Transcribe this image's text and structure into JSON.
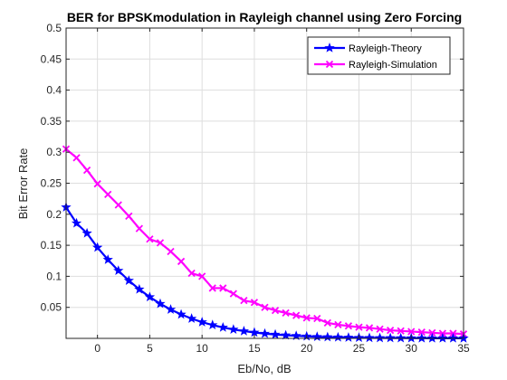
{
  "chart_data": {
    "type": "line",
    "title": "BER for BPSKmodulation in Rayleigh channel using Zero Forcing",
    "xlabel": "Eb/No, dB",
    "ylabel": "Bit Error Rate",
    "xlim": [
      -3,
      35
    ],
    "ylim": [
      0,
      0.5
    ],
    "xticks": [
      "0",
      "5",
      "10",
      "15",
      "20",
      "25",
      "30",
      "35"
    ],
    "yticks": [
      "0.05",
      "0.1",
      "0.15",
      "0.2",
      "0.25",
      "0.3",
      "0.35",
      "0.4",
      "0.45",
      "0.5"
    ],
    "grid": true,
    "legend_position": "top-right",
    "x": [
      -3,
      -2,
      -1,
      0,
      1,
      2,
      3,
      4,
      5,
      6,
      7,
      8,
      9,
      10,
      11,
      12,
      13,
      14,
      15,
      16,
      17,
      18,
      19,
      20,
      21,
      22,
      23,
      24,
      25,
      26,
      27,
      28,
      29,
      30,
      31,
      32,
      33,
      34,
      35
    ],
    "series": [
      {
        "name": "Rayleigh-Theory",
        "color": "#0000ff",
        "marker": "star",
        "values": [
          0.2113,
          0.1855,
          0.1694,
          0.1464,
          0.1268,
          0.1091,
          0.0931,
          0.079,
          0.0666,
          0.0558,
          0.0465,
          0.0386,
          0.0319,
          0.0262,
          0.0215,
          0.0176,
          0.0143,
          0.0117,
          0.0095,
          0.0077,
          0.0062,
          0.005,
          0.0041,
          0.0033,
          0.0026,
          0.0021,
          0.0017,
          0.0014,
          0.0011,
          0.0009,
          0.0007,
          0.0006,
          0.0005,
          0.0004,
          0.0003,
          0.0002,
          0.0002,
          0.0002,
          0.0001
        ]
      },
      {
        "name": "Rayleigh-Simulation",
        "color": "#ff00ff",
        "marker": "x",
        "values": [
          0.305,
          0.291,
          0.271,
          0.249,
          0.232,
          0.215,
          0.197,
          0.177,
          0.16,
          0.154,
          0.14,
          0.124,
          0.105,
          0.1,
          0.081,
          0.081,
          0.072,
          0.061,
          0.058,
          0.05,
          0.045,
          0.041,
          0.037,
          0.033,
          0.032,
          0.025,
          0.022,
          0.02,
          0.018,
          0.017,
          0.015,
          0.013,
          0.012,
          0.011,
          0.01,
          0.009,
          0.008,
          0.008,
          0.007
        ]
      }
    ]
  }
}
